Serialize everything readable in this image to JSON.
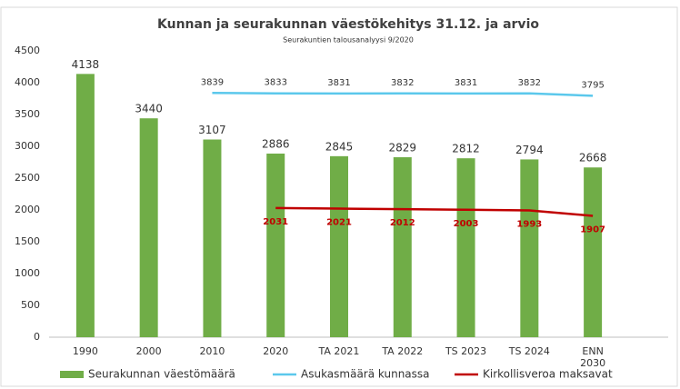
{
  "chart_data": {
    "type": "bar",
    "title": "Kunnan ja seurakunnan väestökehitys  31.12. ja arvio",
    "subtitle": "Seurakuntien talousanalyysi 9/2020",
    "categories": [
      "1990",
      "2000",
      "2010",
      "2020",
      "TA 2021",
      "TA 2022",
      "TS  2023",
      "TS 2024",
      "ENN\n2030"
    ],
    "series": [
      {
        "name": "Seurakunnan väestömäärä",
        "type": "bar",
        "color": "#70ad47",
        "values": [
          4138,
          3440,
          3107,
          2886,
          2845,
          2829,
          2812,
          2794,
          2668
        ]
      },
      {
        "name": "Asukasmäärä kunnassa",
        "type": "line",
        "color": "#5bc8ec",
        "values": [
          null,
          null,
          3839,
          3833,
          3831,
          3832,
          3831,
          3832,
          3795
        ]
      },
      {
        "name": "Kirkollisveroa maksavat",
        "type": "line",
        "color": "#c00000",
        "values": [
          null,
          null,
          null,
          2031,
          2021,
          2012,
          2003,
          1993,
          1907
        ]
      }
    ],
    "ylim": [
      0,
      4500
    ],
    "yticks": [
      0,
      500,
      1000,
      1500,
      2000,
      2500,
      3000,
      3500,
      4000,
      4500
    ],
    "grid": false,
    "legend": "bottom"
  }
}
